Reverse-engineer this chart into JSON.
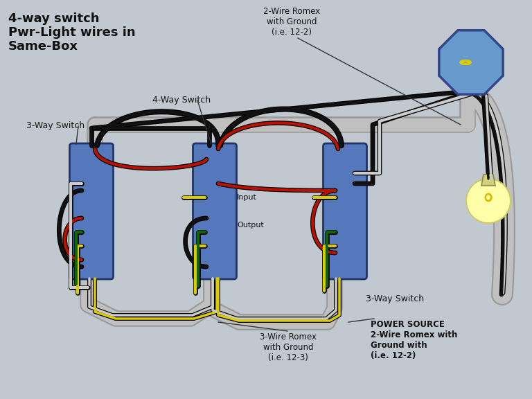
{
  "bg_color": "#c2c8d0",
  "title_line1": "4-way switch",
  "title_line2": "Pwr-Light wires in",
  "title_line3": "Same-Box",
  "label_3way_left": "3-Way Switch",
  "label_4way": "4-Way Switch",
  "label_input": "Input",
  "label_output": "Output",
  "label_3way_right": "3-Way Switch",
  "label_romex_top": "2-Wire Romex\nwith Ground\n(i.e. 12-2)",
  "label_romex_mid": "3-Wire Romex\nwith Ground\n(i.e. 12-3)",
  "label_power": "POWER SOURCE\n2-Wire Romex with\nGround with\n(i.e. 12-2)",
  "wire_black": "#111111",
  "wire_white": "#cccccc",
  "wire_red": "#bb1100",
  "wire_yellow": "#ddcc00",
  "wire_green": "#116600",
  "conduit_outer": "#999999",
  "conduit_inner": "#c0c0c0",
  "box_fill": "#5577bb",
  "box_edge": "#223366",
  "switch_fill": "#cccccc",
  "switch_edge": "#777777",
  "oct_fill": "#6699cc",
  "oct_edge": "#334488",
  "bulb_fill": "#ffffaa",
  "bulb_filament": "#ddbb00"
}
